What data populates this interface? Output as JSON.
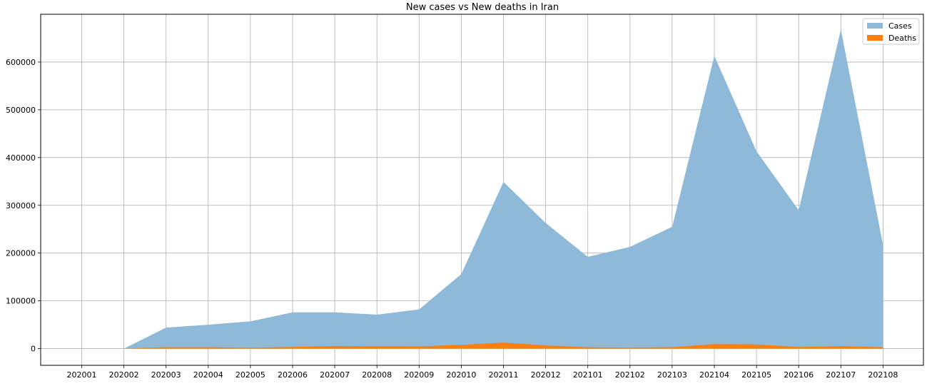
{
  "chart_data": {
    "type": "area",
    "title": "New cases vs New deaths in Iran",
    "xlabel": "",
    "ylabel": "",
    "categories": [
      "202001",
      "202002",
      "202003",
      "202004",
      "202005",
      "202006",
      "202007",
      "202008",
      "202009",
      "202010",
      "202011",
      "202012",
      "202101",
      "202102",
      "202103",
      "202104",
      "202105",
      "202106",
      "202107",
      "202108"
    ],
    "ylim": [
      -35000,
      700000
    ],
    "yticks": [
      0,
      100000,
      200000,
      300000,
      400000,
      500000,
      600000
    ],
    "grid": true,
    "legend_position": "top-right",
    "series": [
      {
        "name": "Cases",
        "color": "#8fb9d8",
        "values": [
          null,
          0,
          44000,
          50000,
          57000,
          76000,
          76000,
          71000,
          82000,
          156000,
          349000,
          263000,
          192000,
          213000,
          255000,
          613000,
          413000,
          290000,
          668000,
          217000
        ]
      },
      {
        "name": "Deaths",
        "color": "#ff7f0e",
        "values": [
          null,
          0,
          2900,
          3000,
          1600,
          3500,
          5500,
          4800,
          4500,
          8000,
          12700,
          6700,
          2700,
          2000,
          3000,
          9500,
          8700,
          3300,
          5200,
          2900
        ]
      }
    ]
  }
}
